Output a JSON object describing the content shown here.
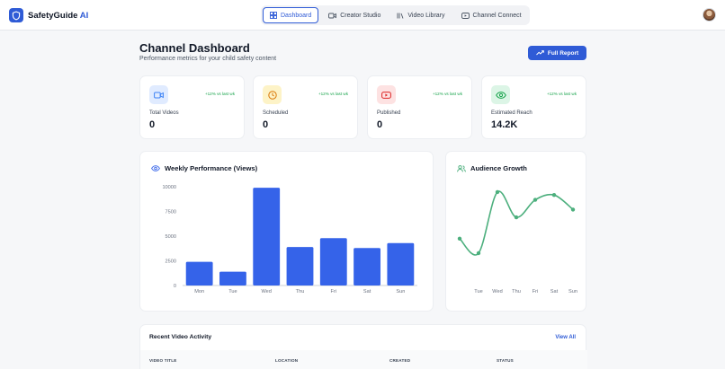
{
  "header": {
    "brand_name": "SafetyGuide",
    "brand_accent": "AI",
    "nav": [
      {
        "label": "Dashboard",
        "icon": "grid-icon",
        "active": true
      },
      {
        "label": "Creator Studio",
        "icon": "video-camera-icon",
        "active": false
      },
      {
        "label": "Video Library",
        "icon": "library-icon",
        "active": false
      },
      {
        "label": "Channel Connect",
        "icon": "youtube-icon",
        "active": false
      }
    ]
  },
  "page": {
    "title": "Channel Dashboard",
    "subtitle": "Performance metrics for your child safety content",
    "report_button": "Full Report"
  },
  "stats": [
    {
      "label": "Total Videos",
      "value": "0",
      "trend": "+12% vs last wk",
      "icon": "video-icon",
      "color": "#3b82f6",
      "bg": "#e0ebff"
    },
    {
      "label": "Scheduled",
      "value": "0",
      "trend": "+12% vs last wk",
      "icon": "clock-icon",
      "color": "#d97706",
      "bg": "#fdf3c7"
    },
    {
      "label": "Published",
      "value": "0",
      "trend": "+12% vs last wk",
      "icon": "youtube-icon",
      "color": "#dc2626",
      "bg": "#fde2e2"
    },
    {
      "label": "Estimated Reach",
      "value": "14.2K",
      "trend": "+12% vs last wk",
      "icon": "eye-icon",
      "color": "#16a34a",
      "bg": "#dcf5e6"
    }
  ],
  "chart_data": [
    {
      "type": "bar",
      "title": "Weekly Performance (Views)",
      "categories": [
        "Mon",
        "Tue",
        "Wed",
        "Thu",
        "Fri",
        "Sat",
        "Sun"
      ],
      "values": [
        2400,
        1400,
        9900,
        3900,
        4800,
        3800,
        4300
      ],
      "yticks": [
        0,
        2500,
        5000,
        7500,
        10000
      ],
      "ylim": [
        0,
        10000
      ],
      "color": "#3563e9"
    },
    {
      "type": "line",
      "title": "Audience Growth",
      "categories": [
        "",
        "Tue",
        "Wed",
        "Thu",
        "Fri",
        "Sat",
        "Sun"
      ],
      "tick_labels": [
        "Tue",
        "Wed",
        "Thu",
        "Fri",
        "Sat",
        "Sun"
      ],
      "values": [
        40,
        25,
        88,
        62,
        80,
        85,
        70
      ],
      "ylim": [
        0,
        100
      ],
      "color": "#4caf7d"
    }
  ],
  "recent": {
    "title": "Recent Video Activity",
    "view_all": "View All",
    "columns": [
      "VIDEO TITLE",
      "LOCATION",
      "CREATED",
      "STATUS"
    ]
  }
}
